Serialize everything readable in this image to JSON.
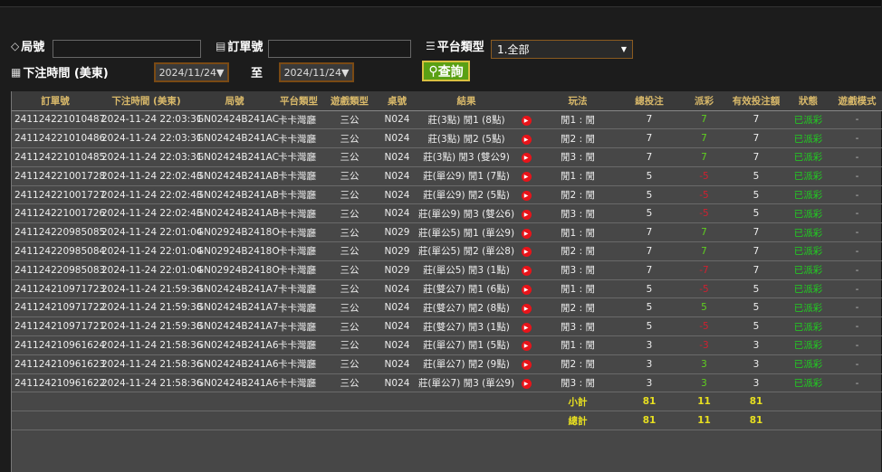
{
  "filters": {
    "round_label": "局號",
    "round_value": "",
    "order_label": "訂單號",
    "order_value": "",
    "platform_label": "平台類型",
    "platform_value": "1.全部",
    "time_label": "下注時間 (美東)",
    "date_from": "2024/11/24▼",
    "to_label": "至",
    "date_to": "2024/11/24▼",
    "search_label": "查詢"
  },
  "columns": [
    "訂單號",
    "下注時間 (美東)",
    "局號",
    "平台類型",
    "遊戲類型",
    "桌號",
    "結果",
    "",
    "玩法",
    "總投注",
    "派彩",
    "有效投注額",
    "狀態",
    "遊戲模式"
  ],
  "rows": [
    [
      "241124221010487",
      "2024-11-24 22:03:31",
      "GN02424B241AC",
      "卡卡灣廳",
      "三公",
      "N024",
      "莊(3點) 閒1 (8點)",
      "閒1 : 閒",
      "7",
      "7",
      "7",
      "已派彩",
      "-"
    ],
    [
      "241124221010486",
      "2024-11-24 22:03:31",
      "GN02424B241AC",
      "卡卡灣廳",
      "三公",
      "N024",
      "莊(3點) 閒2 (5點)",
      "閒2 : 閒",
      "7",
      "7",
      "7",
      "已派彩",
      "-"
    ],
    [
      "241124221010485",
      "2024-11-24 22:03:31",
      "GN02424B241AC",
      "卡卡灣廳",
      "三公",
      "N024",
      "莊(3點) 閒3 (雙公9)",
      "閒3 : 閒",
      "7",
      "7",
      "7",
      "已派彩",
      "-"
    ],
    [
      "241124221001728",
      "2024-11-24 22:02:43",
      "GN02424B241AB",
      "卡卡灣廳",
      "三公",
      "N024",
      "莊(單公9) 閒1 (7點)",
      "閒1 : 閒",
      "5",
      "-5",
      "5",
      "已派彩",
      "-"
    ],
    [
      "241124221001727",
      "2024-11-24 22:02:43",
      "GN02424B241AB",
      "卡卡灣廳",
      "三公",
      "N024",
      "莊(單公9) 閒2 (5點)",
      "閒2 : 閒",
      "5",
      "-5",
      "5",
      "已派彩",
      "-"
    ],
    [
      "241124221001726",
      "2024-11-24 22:02:43",
      "GN02424B241AB",
      "卡卡灣廳",
      "三公",
      "N024",
      "莊(單公9) 閒3 (雙公6)",
      "閒3 : 閒",
      "5",
      "-5",
      "5",
      "已派彩",
      "-"
    ],
    [
      "241124220985085",
      "2024-11-24 22:01:04",
      "GN02924B2418O",
      "卡卡灣廳",
      "三公",
      "N029",
      "莊(單公5) 閒1 (單公9)",
      "閒1 : 閒",
      "7",
      "7",
      "7",
      "已派彩",
      "-"
    ],
    [
      "241124220985084",
      "2024-11-24 22:01:04",
      "GN02924B2418O",
      "卡卡灣廳",
      "三公",
      "N029",
      "莊(單公5) 閒2 (單公8)",
      "閒2 : 閒",
      "7",
      "7",
      "7",
      "已派彩",
      "-"
    ],
    [
      "241124220985083",
      "2024-11-24 22:01:04",
      "GN02924B2418O",
      "卡卡灣廳",
      "三公",
      "N029",
      "莊(單公5) 閒3 (1點)",
      "閒3 : 閒",
      "7",
      "-7",
      "7",
      "已派彩",
      "-"
    ],
    [
      "241124210971723",
      "2024-11-24 21:59:38",
      "GN02424B241A7",
      "卡卡灣廳",
      "三公",
      "N024",
      "莊(雙公7) 閒1 (6點)",
      "閒1 : 閒",
      "5",
      "-5",
      "5",
      "已派彩",
      "-"
    ],
    [
      "241124210971722",
      "2024-11-24 21:59:38",
      "GN02424B241A7",
      "卡卡灣廳",
      "三公",
      "N024",
      "莊(雙公7) 閒2 (8點)",
      "閒2 : 閒",
      "5",
      "5",
      "5",
      "已派彩",
      "-"
    ],
    [
      "241124210971721",
      "2024-11-24 21:59:38",
      "GN02424B241A7",
      "卡卡灣廳",
      "三公",
      "N024",
      "莊(雙公7) 閒3 (1點)",
      "閒3 : 閒",
      "5",
      "-5",
      "5",
      "已派彩",
      "-"
    ],
    [
      "241124210961624",
      "2024-11-24 21:58:36",
      "GN02424B241A6",
      "卡卡灣廳",
      "三公",
      "N024",
      "莊(單公7) 閒1 (5點)",
      "閒1 : 閒",
      "3",
      "-3",
      "3",
      "已派彩",
      "-"
    ],
    [
      "241124210961623",
      "2024-11-24 21:58:36",
      "GN02424B241A6",
      "卡卡灣廳",
      "三公",
      "N024",
      "莊(單公7) 閒2 (9點)",
      "閒2 : 閒",
      "3",
      "3",
      "3",
      "已派彩",
      "-"
    ],
    [
      "241124210961622",
      "2024-11-24 21:58:36",
      "GN02424B241A6",
      "卡卡灣廳",
      "三公",
      "N024",
      "莊(單公7) 閒3 (單公9)",
      "閒3 : 閒",
      "3",
      "3",
      "3",
      "已派彩",
      "-"
    ]
  ],
  "subtotal": {
    "label": "小計",
    "bet": "81",
    "payout": "11",
    "valid": "81"
  },
  "total": {
    "label": "總計",
    "bet": "81",
    "payout": "11",
    "valid": "81"
  },
  "colors": {
    "positive": "#5fd020",
    "negative": "#d02030",
    "status": "#20d020",
    "header": "#d9b96a",
    "sum": "#e8e020"
  }
}
